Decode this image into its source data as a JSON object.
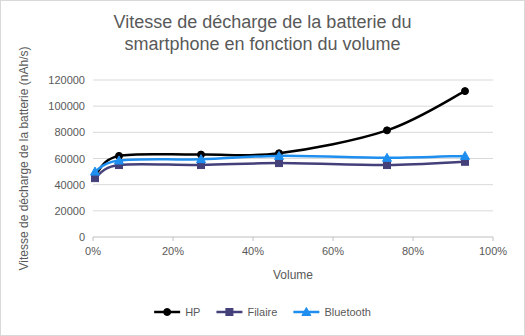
{
  "chart_data": {
    "type": "line",
    "title": "Vitesse de décharge de la batterie du smartphone en fonction du volume",
    "x_label": "Volume",
    "y_label": "Vitesse de décharge de la batterie (nAh/s)",
    "x": [
      0.5,
      6.5,
      27,
      46.5,
      73.5,
      93
    ],
    "series": [
      {
        "name": "HP",
        "color": "#000000",
        "marker": "circle",
        "line_style": "smooth",
        "values": [
          47000,
          62000,
          63000,
          64000,
          81500,
          111500
        ]
      },
      {
        "name": "Filaire",
        "color": "#44407a",
        "marker": "square",
        "line_style": "smooth",
        "values": [
          45000,
          55000,
          55000,
          56500,
          55000,
          57500
        ]
      },
      {
        "name": "Bluetooth",
        "color": "#1f8fef",
        "marker": "triangle",
        "line_style": "smooth",
        "values": [
          50000,
          58500,
          59500,
          62000,
          60500,
          62000
        ]
      }
    ],
    "xlim": [
      0,
      100
    ],
    "xticks": [
      {
        "value": 0,
        "label": "0%"
      },
      {
        "value": 20,
        "label": "20%"
      },
      {
        "value": 40,
        "label": "40%"
      },
      {
        "value": 60,
        "label": "60%"
      },
      {
        "value": 80,
        "label": "80%"
      },
      {
        "value": 100,
        "label": "100%"
      }
    ],
    "ylim": [
      0,
      120000
    ],
    "yticks": [
      0,
      20000,
      40000,
      60000,
      80000,
      100000,
      120000
    ],
    "grid": true,
    "legend": "bottom"
  }
}
